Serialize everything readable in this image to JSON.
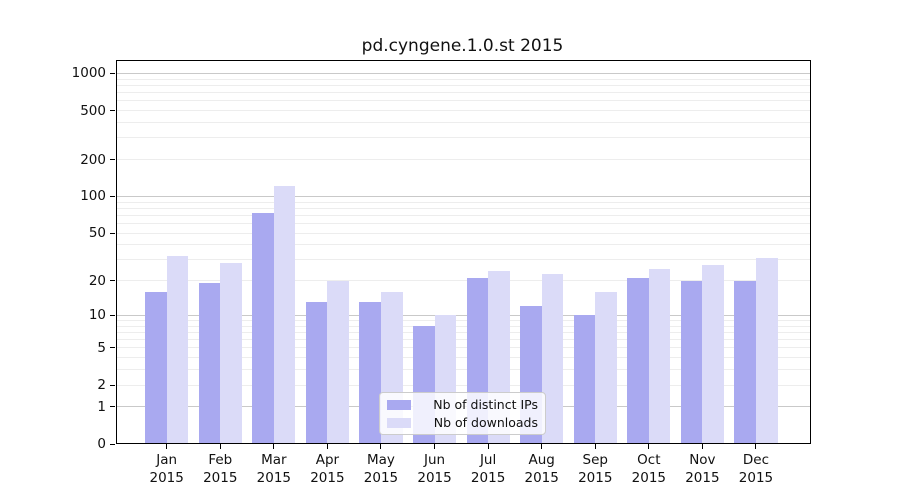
{
  "title": "pd.cyngene.1.0.st 2015",
  "colors": {
    "distinct_ips": "#a9a9f0",
    "downloads": "#dbdbf8",
    "major_grid": "#c9c9c9",
    "minor_grid": "#ededed"
  },
  "legend": {
    "items": [
      {
        "label": "Nb of distinct IPs",
        "color": "#a9a9f0"
      },
      {
        "label": "Nb of downloads",
        "color": "#dbdbf8"
      }
    ]
  },
  "chart_data": {
    "type": "bar",
    "title": "pd.cyngene.1.0.st 2015",
    "categories": [
      "Jan",
      "Feb",
      "Mar",
      "Apr",
      "May",
      "Jun",
      "Jul",
      "Aug",
      "Sep",
      "Oct",
      "Nov",
      "Dec"
    ],
    "year": "2015",
    "series": [
      {
        "name": "Nb of distinct IPs",
        "color": "#a9a9f0",
        "values": [
          16,
          19,
          73,
          13,
          13,
          8,
          21,
          12,
          10,
          21,
          20,
          20
        ]
      },
      {
        "name": "Nb of downloads",
        "color": "#dbdbf8",
        "values": [
          32,
          28,
          122,
          20,
          16,
          10,
          24,
          23,
          16,
          25,
          27,
          31
        ]
      }
    ],
    "xlabel": "",
    "ylabel": "",
    "y_ticks": [
      0,
      1,
      2,
      5,
      10,
      20,
      50,
      100,
      200,
      500,
      1000
    ],
    "ylim": [
      0,
      1264
    ],
    "yscale": "log1p",
    "grid": "horizontal; light minor gridlines at 2-9 per decade, gray major gridlines at 1, 10, 100, 1000",
    "legend_position": "inside lower center"
  }
}
